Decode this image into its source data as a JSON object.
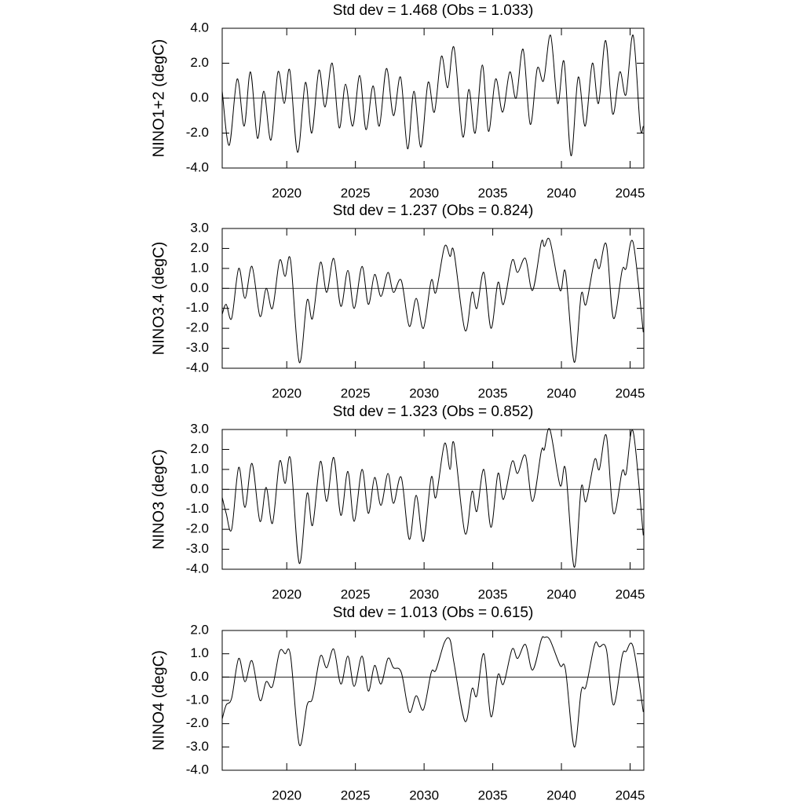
{
  "chart_data": [
    {
      "type": "line",
      "title": "Std dev = 1.468 (Obs = 1.033)",
      "ylabel": "NINO1+2 (degC)",
      "color": "#000000",
      "xlim": [
        2015.3,
        2046.0
      ],
      "xticks": [
        2020,
        2025,
        2030,
        2035,
        2040,
        2045
      ],
      "ylim": [
        -4,
        4
      ],
      "yticks": [
        {
          "value": -4,
          "label": "-4.0"
        },
        {
          "value": -2,
          "label": "-2.0"
        },
        {
          "value": 0,
          "label": "0.0"
        },
        {
          "value": 2,
          "label": "2.0"
        },
        {
          "value": 4,
          "label": "4.0"
        }
      ],
      "x": [
        2015.3,
        2015.81,
        2016.39,
        2016.9,
        2017.36,
        2017.87,
        2018.33,
        2018.85,
        2019.36,
        2019.82,
        2020.22,
        2020.79,
        2021.36,
        2021.82,
        2022.34,
        2022.79,
        2023.31,
        2023.82,
        2024.28,
        2024.8,
        2025.31,
        2025.77,
        2026.28,
        2026.74,
        2027.26,
        2027.77,
        2028.29,
        2028.8,
        2029.26,
        2029.77,
        2030.29,
        2030.75,
        2031.26,
        2031.72,
        2032.18,
        2032.81,
        2033.26,
        2033.72,
        2034.24,
        2034.69,
        2035.21,
        2035.72,
        2036.24,
        2036.7,
        2037.21,
        2037.73,
        2038.24,
        2038.7,
        2039.21,
        2039.73,
        2040.19,
        2040.7,
        2041.22,
        2041.73,
        2042.25,
        2042.7,
        2043.22,
        2043.73,
        2044.25,
        2044.7,
        2045.22,
        2045.73,
        2045.96
      ],
      "values": [
        0.4,
        -2.7,
        1.1,
        -1.6,
        1.5,
        -2.3,
        0.4,
        -2.4,
        1.5,
        -0.3,
        1.6,
        -3.1,
        0.9,
        -2.0,
        1.6,
        -0.5,
        2.0,
        -1.7,
        0.8,
        -1.6,
        1.3,
        -1.8,
        0.7,
        -1.6,
        1.7,
        -1.0,
        1.2,
        -2.9,
        0.4,
        -2.8,
        0.9,
        -0.8,
        2.4,
        0.6,
        2.9,
        -2.2,
        0.5,
        -2.0,
        1.9,
        -1.9,
        1.1,
        -0.8,
        1.5,
        0.0,
        2.8,
        -1.5,
        1.7,
        1.0,
        3.6,
        -0.3,
        2.1,
        -3.3,
        1.2,
        -1.6,
        2.0,
        -0.3,
        3.3,
        -0.9,
        1.5,
        0.2,
        3.6,
        -1.6,
        -1.6
      ]
    },
    {
      "type": "line",
      "title": "Std dev = 1.237 (Obs = 0.824)",
      "ylabel": "NINO3.4 (degC)",
      "color": "#000000",
      "xlim": [
        2015.3,
        2046.0
      ],
      "xticks": [
        2020,
        2025,
        2030,
        2035,
        2040,
        2045
      ],
      "ylim": [
        -4,
        3
      ],
      "yticks": [
        {
          "value": -4,
          "label": "-4.0"
        },
        {
          "value": -3,
          "label": "-3.0"
        },
        {
          "value": -2,
          "label": "-2.0"
        },
        {
          "value": -1,
          "label": "-1.0"
        },
        {
          "value": 0,
          "label": "0.0"
        },
        {
          "value": 1,
          "label": "1.0"
        },
        {
          "value": 2,
          "label": "2.0"
        },
        {
          "value": 3,
          "label": "3.0"
        }
      ],
      "x": [
        2015.3,
        2015.59,
        2015.99,
        2016.5,
        2016.96,
        2017.47,
        2018.05,
        2018.5,
        2018.96,
        2019.48,
        2019.88,
        2020.28,
        2020.91,
        2021.48,
        2021.88,
        2022.45,
        2022.91,
        2023.42,
        2023.94,
        2024.45,
        2024.91,
        2025.48,
        2025.94,
        2026.4,
        2026.86,
        2027.37,
        2027.77,
        2028.34,
        2028.92,
        2029.43,
        2029.95,
        2030.52,
        2030.86,
        2031.49,
        2031.89,
        2032.18,
        2032.98,
        2033.49,
        2033.84,
        2034.35,
        2034.87,
        2035.38,
        2035.78,
        2036.41,
        2036.81,
        2037.38,
        2037.9,
        2038.53,
        2038.76,
        2039.16,
        2039.9,
        2040.3,
        2040.93,
        2041.44,
        2041.79,
        2042.42,
        2042.76,
        2043.27,
        2043.79,
        2044.42,
        2044.71,
        2045.22,
        2045.96
      ],
      "values": [
        -1.3,
        -0.8,
        -1.5,
        1.0,
        -0.5,
        1.1,
        -1.4,
        0.0,
        -1.0,
        1.4,
        0.6,
        1.4,
        -3.7,
        -0.6,
        -1.5,
        1.3,
        -0.2,
        1.5,
        -0.9,
        0.9,
        -1.0,
        1.1,
        -0.8,
        0.7,
        -0.4,
        0.8,
        -0.2,
        0.4,
        -1.9,
        -0.5,
        -2.0,
        0.4,
        -0.2,
        2.1,
        1.6,
        1.8,
        -2.1,
        -0.2,
        -1.0,
        0.8,
        -2.0,
        0.3,
        -0.8,
        1.4,
        0.8,
        1.5,
        -0.1,
        2.3,
        2.1,
        2.4,
        -0.1,
        0.8,
        -3.7,
        -0.3,
        -0.8,
        1.4,
        1.0,
        2.2,
        -1.5,
        0.9,
        1.0,
        2.3,
        -2.2
      ]
    },
    {
      "type": "line",
      "title": "Std dev = 1.323 (Obs = 0.852)",
      "ylabel": "NINO3 (degC)",
      "color": "#000000",
      "xlim": [
        2015.3,
        2046.0
      ],
      "xticks": [
        2020,
        2025,
        2030,
        2035,
        2040,
        2045
      ],
      "ylim": [
        -4,
        3
      ],
      "yticks": [
        {
          "value": -4,
          "label": "-4.0"
        },
        {
          "value": -3,
          "label": "-3.0"
        },
        {
          "value": -2,
          "label": "-2.0"
        },
        {
          "value": -1,
          "label": "-1.0"
        },
        {
          "value": 0,
          "label": "0.0"
        },
        {
          "value": 1,
          "label": "1.0"
        },
        {
          "value": 2,
          "label": "2.0"
        },
        {
          "value": 3,
          "label": "3.0"
        }
      ],
      "x": [
        2015.3,
        2015.59,
        2015.99,
        2016.5,
        2016.96,
        2017.47,
        2018.05,
        2018.5,
        2018.96,
        2019.48,
        2019.88,
        2020.28,
        2020.91,
        2021.48,
        2021.88,
        2022.45,
        2022.91,
        2023.42,
        2023.94,
        2024.45,
        2024.91,
        2025.48,
        2025.94,
        2026.4,
        2026.86,
        2027.37,
        2027.77,
        2028.34,
        2028.92,
        2029.43,
        2029.95,
        2030.52,
        2030.86,
        2031.49,
        2031.89,
        2032.18,
        2032.98,
        2033.49,
        2033.84,
        2034.35,
        2034.87,
        2035.38,
        2035.78,
        2036.41,
        2036.81,
        2037.38,
        2037.9,
        2038.53,
        2038.76,
        2039.16,
        2039.9,
        2040.3,
        2040.93,
        2041.44,
        2041.79,
        2042.42,
        2042.76,
        2043.27,
        2043.79,
        2044.42,
        2044.71,
        2045.22,
        2045.96
      ],
      "values": [
        -0.4,
        -1.2,
        -2.0,
        1.1,
        -0.9,
        1.3,
        -1.6,
        0.1,
        -1.7,
        1.4,
        0.3,
        1.5,
        -3.7,
        -0.2,
        -1.8,
        1.4,
        -0.6,
        1.6,
        -1.3,
        0.9,
        -1.6,
        1.0,
        -1.2,
        0.6,
        -0.8,
        0.8,
        -0.7,
        0.6,
        -2.5,
        -0.3,
        -2.6,
        0.6,
        -0.4,
        2.3,
        1.0,
        2.3,
        -2.2,
        -0.1,
        -1.1,
        1.0,
        -1.9,
        0.8,
        -0.5,
        1.4,
        0.8,
        1.7,
        -0.6,
        1.9,
        2.0,
        3.0,
        0.2,
        1.0,
        -3.9,
        0.1,
        -0.6,
        1.5,
        1.0,
        2.7,
        -1.2,
        0.9,
        0.8,
        2.9,
        -2.3
      ]
    },
    {
      "type": "line",
      "title": "Std dev = 1.013 (Obs = 0.615)",
      "ylabel": "NINO4 (degC)",
      "color": "#000000",
      "xlim": [
        2015.3,
        2046.0
      ],
      "xticks": [
        2020,
        2025,
        2030,
        2035,
        2040,
        2045
      ],
      "ylim": [
        -4,
        2
      ],
      "yticks": [
        {
          "value": -4,
          "label": "-4.0"
        },
        {
          "value": -3,
          "label": "-3.0"
        },
        {
          "value": -2,
          "label": "-2.0"
        },
        {
          "value": -1,
          "label": "-1.0"
        },
        {
          "value": 0,
          "label": "0.0"
        },
        {
          "value": 1,
          "label": "1.0"
        },
        {
          "value": 2,
          "label": "2.0"
        }
      ],
      "x": [
        2015.3,
        2015.59,
        2015.99,
        2016.5,
        2016.96,
        2017.47,
        2018.05,
        2018.5,
        2018.96,
        2019.48,
        2019.88,
        2020.28,
        2020.91,
        2021.48,
        2021.88,
        2022.45,
        2022.91,
        2023.42,
        2023.94,
        2024.45,
        2024.91,
        2025.48,
        2025.94,
        2026.4,
        2026.86,
        2027.37,
        2027.77,
        2028.34,
        2028.92,
        2029.43,
        2029.95,
        2030.52,
        2030.86,
        2031.49,
        2031.89,
        2032.18,
        2032.98,
        2033.49,
        2033.84,
        2034.35,
        2034.87,
        2035.38,
        2035.78,
        2036.41,
        2036.81,
        2037.38,
        2037.9,
        2038.53,
        2038.76,
        2039.16,
        2039.9,
        2040.3,
        2040.93,
        2041.44,
        2041.79,
        2042.42,
        2042.76,
        2043.27,
        2043.79,
        2044.42,
        2044.71,
        2045.22,
        2045.96
      ],
      "values": [
        -1.8,
        -1.2,
        -0.9,
        0.8,
        -0.2,
        0.7,
        -1.0,
        -0.2,
        -0.4,
        1.1,
        1.0,
        0.9,
        -2.9,
        -1.2,
        -0.9,
        0.9,
        0.4,
        1.2,
        -0.3,
        0.9,
        -0.4,
        0.9,
        -0.6,
        0.5,
        -0.3,
        0.8,
        0.4,
        0.2,
        -1.5,
        -0.8,
        -1.4,
        0.2,
        0.3,
        1.5,
        1.6,
        0.6,
        -1.9,
        -0.5,
        -0.8,
        1.0,
        -1.7,
        0.1,
        -0.3,
        1.2,
        0.8,
        1.4,
        0.3,
        1.6,
        1.7,
        1.6,
        0.5,
        0.3,
        -3.0,
        -0.6,
        -0.4,
        1.4,
        1.3,
        1.2,
        -1.2,
        0.9,
        1.1,
        1.3,
        -1.5
      ]
    }
  ]
}
